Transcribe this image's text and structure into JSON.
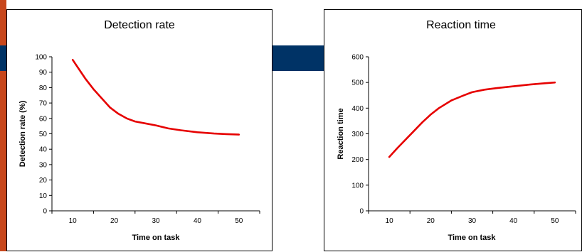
{
  "decor": {
    "left_strip_color": "#c8471c",
    "band_color": "#003366"
  },
  "chart_data": [
    {
      "type": "line",
      "title": "Detection rate",
      "xlabel": "Time on task",
      "ylabel": "Detection rate (%)",
      "xlim": [
        5,
        55
      ],
      "ylim": [
        0,
        100
      ],
      "x_ticks": [
        10,
        20,
        30,
        40,
        50
      ],
      "y_ticks": [
        0,
        10,
        20,
        30,
        40,
        50,
        60,
        70,
        80,
        90,
        100
      ],
      "grid": false,
      "legend": "none",
      "series": [
        {
          "color": "#e60000",
          "x": [
            10,
            11,
            13,
            15,
            17,
            19,
            21,
            23,
            25,
            27,
            30,
            33,
            36,
            40,
            44,
            47,
            50
          ],
          "y": [
            98,
            94,
            86,
            79,
            73,
            67,
            63,
            60,
            58,
            57,
            55.5,
            53.5,
            52.3,
            51,
            50.2,
            49.8,
            49.5
          ]
        }
      ]
    },
    {
      "type": "line",
      "title": "Reaction time",
      "xlabel": "Time on task",
      "ylabel": "Reaction time",
      "xlim": [
        5,
        55
      ],
      "ylim": [
        0,
        600
      ],
      "x_ticks": [
        10,
        20,
        30,
        40,
        50
      ],
      "y_ticks": [
        0,
        100,
        200,
        300,
        400,
        500,
        600
      ],
      "grid": false,
      "legend": "none",
      "series": [
        {
          "color": "#e60000",
          "x": [
            10,
            12,
            15,
            18,
            20,
            22,
            25,
            28,
            30,
            33,
            36,
            40,
            44,
            47,
            50
          ],
          "y": [
            210,
            245,
            295,
            345,
            375,
            400,
            430,
            450,
            462,
            472,
            478,
            485,
            492,
            496,
            500
          ]
        }
      ]
    }
  ]
}
